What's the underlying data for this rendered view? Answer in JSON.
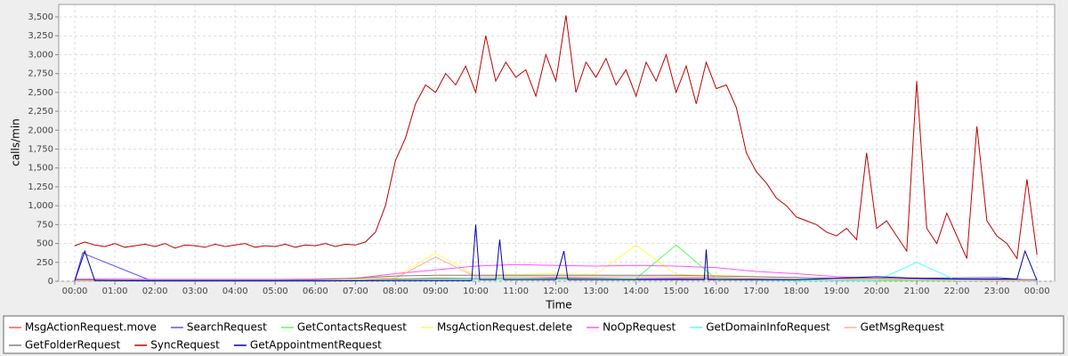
{
  "chart_data": {
    "type": "line",
    "x_label": "Time",
    "y_label": "calls/min",
    "xlim": [
      -0.4,
      24.44
    ],
    "ylim": [
      0,
      3665
    ],
    "grid": true,
    "xticks": [
      {
        "value": 0,
        "label": "00:00"
      },
      {
        "value": 1,
        "label": "01:00"
      },
      {
        "value": 2,
        "label": "02:00"
      },
      {
        "value": 3,
        "label": "03:00"
      },
      {
        "value": 4,
        "label": "04:00"
      },
      {
        "value": 5,
        "label": "05:00"
      },
      {
        "value": 6,
        "label": "06:00"
      },
      {
        "value": 7,
        "label": "07:00"
      },
      {
        "value": 8,
        "label": "08:00"
      },
      {
        "value": 9,
        "label": "09:00"
      },
      {
        "value": 10,
        "label": "10:00"
      },
      {
        "value": 11,
        "label": "11:00"
      },
      {
        "value": 12,
        "label": "12:00"
      },
      {
        "value": 13,
        "label": "13:00"
      },
      {
        "value": 14,
        "label": "14:00"
      },
      {
        "value": 15,
        "label": "15:00"
      },
      {
        "value": 16,
        "label": "16:00"
      },
      {
        "value": 17,
        "label": "17:00"
      },
      {
        "value": 18,
        "label": "18:00"
      },
      {
        "value": 19,
        "label": "19:00"
      },
      {
        "value": 20,
        "label": "20:00"
      },
      {
        "value": 21,
        "label": "21:00"
      },
      {
        "value": 22,
        "label": "22:00"
      },
      {
        "value": 23,
        "label": "23:00"
      },
      {
        "value": 24,
        "label": "00:00"
      }
    ],
    "yticks": [
      0,
      250,
      500,
      750,
      {
        "value": 1000,
        "label": "1,000"
      },
      {
        "value": 1250,
        "label": "1,250"
      },
      {
        "value": 1500,
        "label": "1,500"
      },
      {
        "value": 1750,
        "label": "1,750"
      },
      {
        "value": 2000,
        "label": "2,000"
      },
      {
        "value": 2250,
        "label": "2,250"
      },
      {
        "value": 2500,
        "label": "2,500"
      },
      {
        "value": 2750,
        "label": "2,750"
      },
      {
        "value": 3000,
        "label": "3,000"
      },
      {
        "value": 3250,
        "label": "3,250"
      },
      {
        "value": 3500,
        "label": "3,500"
      }
    ],
    "series": [
      {
        "name": "MsgActionRequest.move",
        "color": "#ff5555",
        "x": [
          0,
          1,
          2,
          3,
          4,
          5,
          6,
          7,
          8,
          9,
          10,
          11,
          12,
          13,
          14,
          15,
          16,
          17,
          18,
          19,
          20,
          21,
          22,
          23,
          24
        ],
        "values": [
          15,
          10,
          10,
          8,
          8,
          10,
          12,
          20,
          30,
          40,
          35,
          40,
          45,
          40,
          35,
          40,
          35,
          30,
          25,
          20,
          30,
          25,
          20,
          15,
          10
        ]
      },
      {
        "name": "SearchRequest",
        "color": "#5555ff",
        "x": [
          0,
          0.2,
          0.3,
          1,
          1.9,
          3,
          5,
          7,
          9,
          11,
          13,
          15,
          17,
          19,
          21,
          23,
          24
        ],
        "values": [
          10,
          380,
          350,
          200,
          10,
          5,
          5,
          10,
          30,
          40,
          35,
          30,
          20,
          15,
          40,
          50,
          10
        ]
      },
      {
        "name": "GetContactsRequest",
        "color": "#55ff55",
        "x": [
          0,
          1,
          2,
          3,
          4,
          5,
          6,
          7,
          8,
          9,
          10,
          11,
          12,
          13,
          14,
          15,
          16,
          17,
          18,
          19,
          20,
          21,
          22,
          23,
          24
        ],
        "values": [
          5,
          5,
          5,
          5,
          5,
          5,
          5,
          10,
          20,
          30,
          30,
          40,
          30,
          30,
          35,
          480,
          30,
          20,
          15,
          10,
          10,
          10,
          10,
          8,
          5
        ]
      },
      {
        "name": "MsgActionRequest.delete",
        "color": "#ffff55",
        "x": [
          0,
          1,
          2,
          3,
          4,
          5,
          6,
          7,
          8,
          9,
          10,
          11,
          12,
          13,
          14,
          15,
          16,
          17,
          18,
          19,
          20,
          21,
          22,
          23,
          24
        ],
        "values": [
          10,
          8,
          5,
          5,
          5,
          5,
          8,
          30,
          60,
          370,
          80,
          90,
          100,
          90,
          480,
          90,
          80,
          60,
          50,
          40,
          30,
          30,
          20,
          15,
          10
        ]
      },
      {
        "name": "NoOpRequest",
        "color": "#ff55ff",
        "x": [
          0,
          1,
          2,
          3,
          4,
          5,
          6,
          7,
          8,
          9,
          10,
          11,
          12,
          13,
          14,
          15,
          16,
          17,
          18,
          19,
          20,
          21,
          22,
          23,
          24
        ],
        "values": [
          30,
          30,
          25,
          25,
          25,
          25,
          30,
          40,
          100,
          150,
          200,
          220,
          210,
          200,
          210,
          200,
          180,
          130,
          100,
          60,
          40,
          30,
          30,
          25,
          20
        ]
      },
      {
        "name": "GetDomainInfoRequest",
        "color": "#55ffff",
        "x": [
          0,
          1,
          2,
          3,
          4,
          5,
          6,
          7,
          8,
          9,
          10,
          11,
          12,
          13,
          14,
          15,
          16,
          17,
          18,
          19,
          20,
          21,
          22,
          23,
          24
        ],
        "values": [
          5,
          5,
          5,
          5,
          5,
          5,
          5,
          10,
          15,
          20,
          20,
          20,
          20,
          20,
          20,
          20,
          20,
          15,
          10,
          10,
          10,
          250,
          10,
          10,
          5
        ]
      },
      {
        "name": "GetMsgRequest",
        "color": "#ffaaaa",
        "x": [
          0,
          1,
          2,
          3,
          4,
          5,
          6,
          7,
          8,
          9,
          10,
          11,
          12,
          13,
          14,
          15,
          16,
          17,
          18,
          19,
          20,
          21,
          22,
          23,
          24
        ],
        "values": [
          10,
          5,
          5,
          5,
          5,
          5,
          10,
          20,
          40,
          320,
          60,
          60,
          60,
          60,
          60,
          60,
          50,
          40,
          30,
          20,
          20,
          20,
          15,
          10,
          10
        ]
      },
      {
        "name": "GetFolderRequest",
        "color": "#808080",
        "x": [
          0,
          1,
          2,
          3,
          4,
          5,
          6,
          7,
          8,
          9,
          10,
          11,
          12,
          13,
          14,
          15,
          16,
          17,
          18,
          19,
          20,
          21,
          22,
          23,
          24
        ],
        "values": [
          20,
          15,
          15,
          15,
          15,
          15,
          20,
          40,
          70,
          80,
          80,
          80,
          80,
          80,
          80,
          80,
          70,
          60,
          50,
          40,
          40,
          35,
          30,
          25,
          20
        ]
      },
      {
        "name": "SyncRequest",
        "color": "#c00000",
        "x": [
          0,
          0.25,
          0.5,
          0.75,
          1,
          1.25,
          1.5,
          1.75,
          2,
          2.25,
          2.5,
          2.75,
          3,
          3.25,
          3.5,
          3.75,
          4,
          4.25,
          4.5,
          4.75,
          5,
          5.25,
          5.5,
          5.75,
          6,
          6.25,
          6.5,
          6.75,
          7,
          7.25,
          7.5,
          7.75,
          8,
          8.25,
          8.5,
          8.75,
          9,
          9.25,
          9.5,
          9.75,
          10,
          10.25,
          10.5,
          10.75,
          11,
          11.25,
          11.5,
          11.75,
          12,
          12.25,
          12.5,
          12.75,
          13,
          13.25,
          13.5,
          13.75,
          14,
          14.25,
          14.5,
          14.75,
          15,
          15.25,
          15.5,
          15.75,
          16,
          16.25,
          16.5,
          16.75,
          17,
          17.25,
          17.5,
          17.75,
          18,
          18.25,
          18.5,
          18.75,
          19,
          19.25,
          19.5,
          19.75,
          20,
          20.25,
          20.5,
          20.75,
          21,
          21.25,
          21.5,
          21.75,
          22,
          22.25,
          22.5,
          22.75,
          23,
          23.25,
          23.5,
          23.75,
          24
        ],
        "values": [
          470,
          520,
          480,
          460,
          500,
          450,
          470,
          490,
          460,
          500,
          440,
          480,
          470,
          450,
          490,
          460,
          480,
          500,
          450,
          470,
          460,
          490,
          450,
          480,
          470,
          500,
          460,
          490,
          480,
          520,
          650,
          1000,
          1600,
          1900,
          2350,
          2600,
          2500,
          2750,
          2600,
          2850,
          2500,
          3250,
          2650,
          2900,
          2700,
          2800,
          2450,
          3000,
          2650,
          3520,
          2500,
          2900,
          2700,
          2950,
          2600,
          2800,
          2450,
          2900,
          2650,
          3000,
          2500,
          2850,
          2350,
          2900,
          2550,
          2600,
          2300,
          1700,
          1450,
          1300,
          1100,
          1000,
          850,
          800,
          750,
          650,
          600,
          700,
          550,
          1700,
          700,
          800,
          600,
          400,
          2650,
          700,
          500,
          900,
          600,
          300,
          2050,
          800,
          600,
          500,
          300,
          1350,
          350
        ]
      },
      {
        "name": "GetAppointmentRequest",
        "color": "#0000aa",
        "x": [
          0,
          0.25,
          0.5,
          2,
          4,
          6,
          8,
          9.9,
          10,
          10.1,
          10.5,
          10.6,
          10.7,
          12,
          12.2,
          12.3,
          14,
          15.7,
          15.75,
          15.8,
          18,
          20,
          21,
          22,
          23.5,
          23.7,
          24
        ],
        "values": [
          5,
          400,
          10,
          5,
          5,
          5,
          10,
          10,
          750,
          20,
          20,
          550,
          20,
          20,
          400,
          20,
          20,
          20,
          420,
          20,
          20,
          60,
          40,
          30,
          30,
          400,
          10
        ]
      }
    ]
  }
}
